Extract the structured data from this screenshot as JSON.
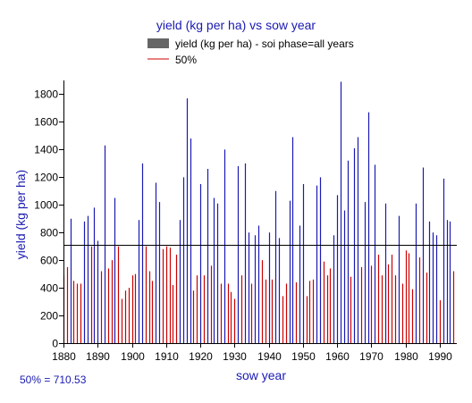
{
  "chart_data": {
    "type": "bar",
    "title": "yield (kg per ha) vs sow year",
    "xlabel": "sow year",
    "ylabel": "yield (kg per ha)",
    "legend": [
      {
        "label": "yield (kg per ha) - soi phase=all years",
        "color": "#666666",
        "kind": "box"
      },
      {
        "label": "50%",
        "color": "#cc0000",
        "kind": "line"
      }
    ],
    "legend_position": "top",
    "xlim": [
      1880,
      1995
    ],
    "ylim": [
      0,
      1900
    ],
    "xticks": [
      1880,
      1890,
      1900,
      1910,
      1920,
      1930,
      1940,
      1950,
      1960,
      1970,
      1980,
      1990
    ],
    "yticks": [
      0,
      200,
      400,
      600,
      800,
      1000,
      1200,
      1400,
      1600,
      1800
    ],
    "threshold": 710.53,
    "above_color": "#1a1ab3",
    "below_color": "#cc0000",
    "x": [
      1880,
      1881,
      1882,
      1883,
      1884,
      1885,
      1886,
      1887,
      1888,
      1889,
      1890,
      1891,
      1892,
      1893,
      1894,
      1895,
      1896,
      1897,
      1898,
      1899,
      1900,
      1901,
      1902,
      1903,
      1904,
      1905,
      1906,
      1907,
      1908,
      1909,
      1910,
      1911,
      1912,
      1913,
      1914,
      1915,
      1916,
      1917,
      1918,
      1919,
      1920,
      1921,
      1922,
      1923,
      1924,
      1925,
      1926,
      1927,
      1928,
      1929,
      1930,
      1931,
      1932,
      1933,
      1934,
      1935,
      1936,
      1937,
      1938,
      1939,
      1940,
      1941,
      1942,
      1943,
      1944,
      1945,
      1946,
      1947,
      1948,
      1949,
      1950,
      1951,
      1952,
      1953,
      1954,
      1955,
      1956,
      1957,
      1958,
      1959,
      1960,
      1961,
      1962,
      1963,
      1964,
      1965,
      1966,
      1967,
      1968,
      1969,
      1970,
      1971,
      1972,
      1973,
      1974,
      1975,
      1976,
      1977,
      1978,
      1979,
      1980,
      1981,
      1982,
      1983,
      1984,
      1985,
      1986,
      1987,
      1988,
      1989,
      1990,
      1991,
      1992,
      1993,
      1994
    ],
    "values": [
      490,
      550,
      900,
      450,
      430,
      430,
      880,
      920,
      700,
      980,
      740,
      520,
      1430,
      540,
      600,
      1050,
      700,
      320,
      380,
      400,
      490,
      500,
      890,
      1300,
      700,
      520,
      450,
      1160,
      1020,
      680,
      700,
      690,
      420,
      640,
      890,
      1200,
      1770,
      1480,
      380,
      490,
      1150,
      490,
      1260,
      560,
      1050,
      1010,
      430,
      1400,
      430,
      370,
      320,
      1280,
      490,
      1300,
      800,
      430,
      780,
      850,
      600,
      460,
      800,
      460,
      1100,
      760,
      340,
      430,
      1030,
      1490,
      440,
      850,
      1150,
      340,
      450,
      460,
      1140,
      1200,
      590,
      490,
      540,
      780,
      1070,
      1890,
      960,
      1320,
      480,
      1410,
      1490,
      550,
      1020,
      1670,
      560,
      1290,
      640,
      490,
      1010,
      570,
      640,
      490,
      920,
      430,
      670,
      650,
      390,
      1010,
      620,
      1270,
      510,
      880,
      800,
      780,
      310,
      1190,
      890,
      880,
      520
    ]
  },
  "footer": {
    "label": "50% = 710.53",
    "color": "#1a1ab3"
  }
}
